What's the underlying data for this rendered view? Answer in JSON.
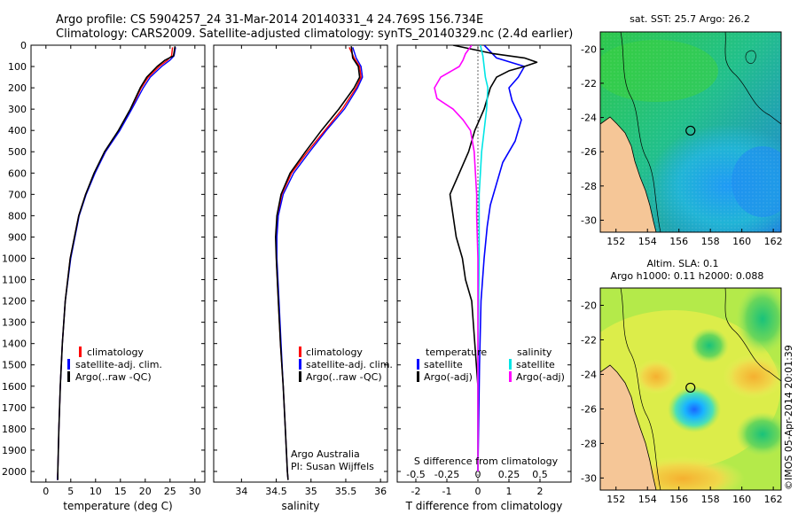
{
  "header": {
    "line1": "Argo profile: CS 5904257_24 31-Mar-2014 20140331_4 24.769S 156.734E",
    "line2": "Climatology: CARS2009. Satellite-adjusted climatology: synTS_20140329.nc (2.4d earlier)"
  },
  "colors": {
    "climatology": "#ff0000",
    "satellite": "#0000ff",
    "argo": "#000000",
    "sal_satellite": "#00e5e5",
    "sal_argo": "#ff00ff",
    "land": "#f5c697"
  },
  "depth_axis": {
    "ticks": [
      "0",
      "100",
      "200",
      "300",
      "400",
      "500",
      "600",
      "700",
      "800",
      "900",
      "1000",
      "1100",
      "1200",
      "1300",
      "1400",
      "1500",
      "1600",
      "1700",
      "1800",
      "1900",
      "2000"
    ]
  },
  "chart_data": [
    {
      "type": "line",
      "name": "temperature-profile",
      "xlabel": "temperature (deg C)",
      "xlim": [
        -3,
        32
      ],
      "ylim": [
        0,
        2050
      ],
      "x_ticks": [
        "0",
        "5",
        "10",
        "15",
        "20",
        "25",
        "30"
      ],
      "legend": [
        "climatology",
        "satellite-adj. clim.",
        "Argo(..raw -QC)"
      ],
      "series": [
        {
          "name": "climatology",
          "depth": [
            10,
            50,
            70,
            100,
            150,
            200,
            300,
            400,
            500,
            600,
            700,
            800,
            1000,
            1200,
            1400,
            1600,
            1800,
            2000,
            2040
          ],
          "values": [
            25.5,
            25.3,
            24.5,
            22.8,
            20.6,
            19.2,
            17.1,
            14.8,
            12.0,
            9.8,
            8.0,
            6.6,
            4.9,
            3.9,
            3.3,
            2.9,
            2.6,
            2.4,
            2.3
          ]
        },
        {
          "name": "satellite",
          "depth": [
            10,
            50,
            70,
            100,
            150,
            200,
            300,
            400,
            500,
            600,
            700,
            800,
            1000,
            1200,
            1400,
            1600,
            1800,
            2000,
            2040
          ],
          "values": [
            26.1,
            25.8,
            25.0,
            23.3,
            21.0,
            19.6,
            17.3,
            14.9,
            12.0,
            9.9,
            8.1,
            6.7,
            5.0,
            3.9,
            3.3,
            2.9,
            2.6,
            2.4,
            2.3
          ]
        },
        {
          "name": "argo",
          "depth": [
            5,
            50,
            70,
            100,
            150,
            200,
            300,
            400,
            500,
            600,
            700,
            800,
            1000,
            1200,
            1400,
            1600,
            1800,
            2000,
            2040
          ],
          "values": [
            26.0,
            25.7,
            24.0,
            22.4,
            20.3,
            19.0,
            17.0,
            14.6,
            11.8,
            9.7,
            8.0,
            6.6,
            4.9,
            3.9,
            3.3,
            2.9,
            2.6,
            2.4,
            2.4
          ]
        }
      ]
    },
    {
      "type": "line",
      "name": "salinity-profile",
      "xlabel": "salinity",
      "xlim": [
        33.6,
        36.1
      ],
      "ylim": [
        0,
        2050
      ],
      "x_ticks": [
        "34",
        "34.5",
        "35",
        "35.5",
        "36"
      ],
      "legend": [
        "climatology",
        "satellite-adj. clim.",
        "Argo(..raw -QC)"
      ],
      "series": [
        {
          "name": "climatology",
          "depth": [
            10,
            60,
            100,
            150,
            200,
            300,
            400,
            500,
            600,
            700,
            800,
            900,
            1000,
            1200,
            1400,
            1600,
            1800,
            2000,
            2040
          ],
          "values": [
            35.55,
            35.62,
            35.7,
            35.72,
            35.65,
            35.45,
            35.2,
            34.95,
            34.72,
            34.58,
            34.52,
            34.5,
            34.5,
            34.53,
            34.56,
            34.6,
            34.63,
            34.66,
            34.67
          ]
        },
        {
          "name": "satellite",
          "depth": [
            10,
            60,
            100,
            150,
            200,
            300,
            400,
            500,
            600,
            700,
            800,
            900,
            1000,
            1200,
            1400,
            1600,
            1800,
            2000,
            2040
          ],
          "values": [
            35.6,
            35.65,
            35.72,
            35.74,
            35.67,
            35.48,
            35.22,
            34.98,
            34.75,
            34.6,
            34.53,
            34.51,
            34.51,
            34.54,
            34.57,
            34.6,
            34.63,
            34.66,
            34.67
          ]
        },
        {
          "name": "argo",
          "depth": [
            5,
            60,
            100,
            150,
            200,
            300,
            400,
            500,
            600,
            700,
            800,
            900,
            1000,
            1200,
            1400,
            1600,
            1800,
            2000,
            2040
          ],
          "values": [
            35.58,
            35.6,
            35.68,
            35.7,
            35.62,
            35.4,
            35.15,
            34.92,
            34.7,
            34.57,
            34.51,
            34.49,
            34.5,
            34.53,
            34.56,
            34.6,
            34.63,
            34.66,
            34.67
          ]
        }
      ]
    },
    {
      "type": "line",
      "name": "difference-profile",
      "xlabel": "T difference from climatology",
      "xlabel_top": "S difference from climatology",
      "xlim": [
        -2.6,
        3.0
      ],
      "ylim": [
        0,
        2050
      ],
      "x_ticks": [
        "-2",
        "-1",
        "0",
        "1",
        "2"
      ],
      "x_ticks_top": [
        "-0.5",
        "-0.25",
        "0",
        "0.25",
        "0.5"
      ],
      "legend_left_title": "temperature",
      "legend_right_title": "salinity",
      "legend": [
        "satellite",
        "Argo(-adj)",
        "satellite",
        "Argo(-adj)"
      ],
      "series": [
        {
          "name": "T satellite",
          "depth": [
            0,
            30,
            60,
            100,
            150,
            200,
            260,
            350,
            450,
            550,
            650,
            750,
            850,
            1000,
            1200,
            1500,
            2000
          ],
          "values": [
            0.2,
            0.4,
            0.6,
            1.5,
            1.3,
            1.0,
            1.1,
            1.4,
            1.2,
            0.8,
            0.6,
            0.4,
            0.3,
            0.2,
            0.1,
            0.05,
            0.0
          ]
        },
        {
          "name": "T argo",
          "depth": [
            0,
            40,
            60,
            80,
            100,
            120,
            150,
            200,
            300,
            400,
            500,
            600,
            700,
            800,
            900,
            1000,
            1100,
            1200,
            1400,
            1600,
            2000
          ],
          "values": [
            -0.8,
            0.5,
            1.5,
            1.9,
            1.5,
            1.0,
            0.6,
            0.4,
            0.2,
            -0.1,
            -0.3,
            -0.6,
            -0.9,
            -0.8,
            -0.7,
            -0.5,
            -0.4,
            -0.2,
            -0.1,
            0.0,
            0.0
          ]
        },
        {
          "name": "S satellite",
          "depth": [
            0,
            50,
            100,
            150,
            200,
            300,
            400,
            500,
            600,
            700,
            800,
            1000,
            1500,
            2000
          ],
          "values": [
            0.02,
            0.04,
            0.05,
            0.06,
            0.08,
            0.07,
            0.05,
            0.03,
            0.02,
            0.01,
            0.01,
            0.01,
            0.0,
            0.0
          ]
        },
        {
          "name": "S argo",
          "depth": [
            0,
            40,
            70,
            100,
            150,
            200,
            250,
            300,
            350,
            400,
            500,
            600,
            700,
            800,
            1000,
            1500,
            2000
          ],
          "values": [
            -0.05,
            -0.1,
            -0.12,
            -0.15,
            -0.3,
            -0.35,
            -0.33,
            -0.2,
            -0.12,
            -0.06,
            -0.03,
            -0.02,
            -0.01,
            -0.01,
            0.0,
            0.0,
            0.0
          ]
        }
      ]
    },
    {
      "type": "heatmap",
      "name": "sst-map",
      "title": "sat. SST: 25.7  Argo: 26.2",
      "xlim": [
        151,
        162.5
      ],
      "ylim": [
        -30.7,
        -19
      ],
      "x_ticks": [
        "152",
        "154",
        "156",
        "158",
        "160",
        "162"
      ],
      "y_ticks": [
        "-20",
        "-22",
        "-24",
        "-26",
        "-28",
        "-30"
      ],
      "argo_position": {
        "lon": 156.734,
        "lat": -24.769
      }
    },
    {
      "type": "heatmap",
      "name": "sla-map",
      "title_line1": "Altim. SLA: 0.1",
      "title_line2": "Argo h1000: 0.11 h2000: 0.088",
      "xlim": [
        151,
        162.5
      ],
      "ylim": [
        -30.7,
        -19
      ],
      "x_ticks": [
        "152",
        "154",
        "156",
        "158",
        "160",
        "162"
      ],
      "y_ticks": [
        "-20",
        "-22",
        "-24",
        "-26",
        "-28",
        "-30"
      ],
      "argo_position": {
        "lon": 156.734,
        "lat": -24.769
      }
    }
  ],
  "credits": {
    "institution": "Argo Australia",
    "pi": "PI: Susan Wijffels",
    "stamp": "©IMOS 05-Apr-2014 20:01:39"
  }
}
